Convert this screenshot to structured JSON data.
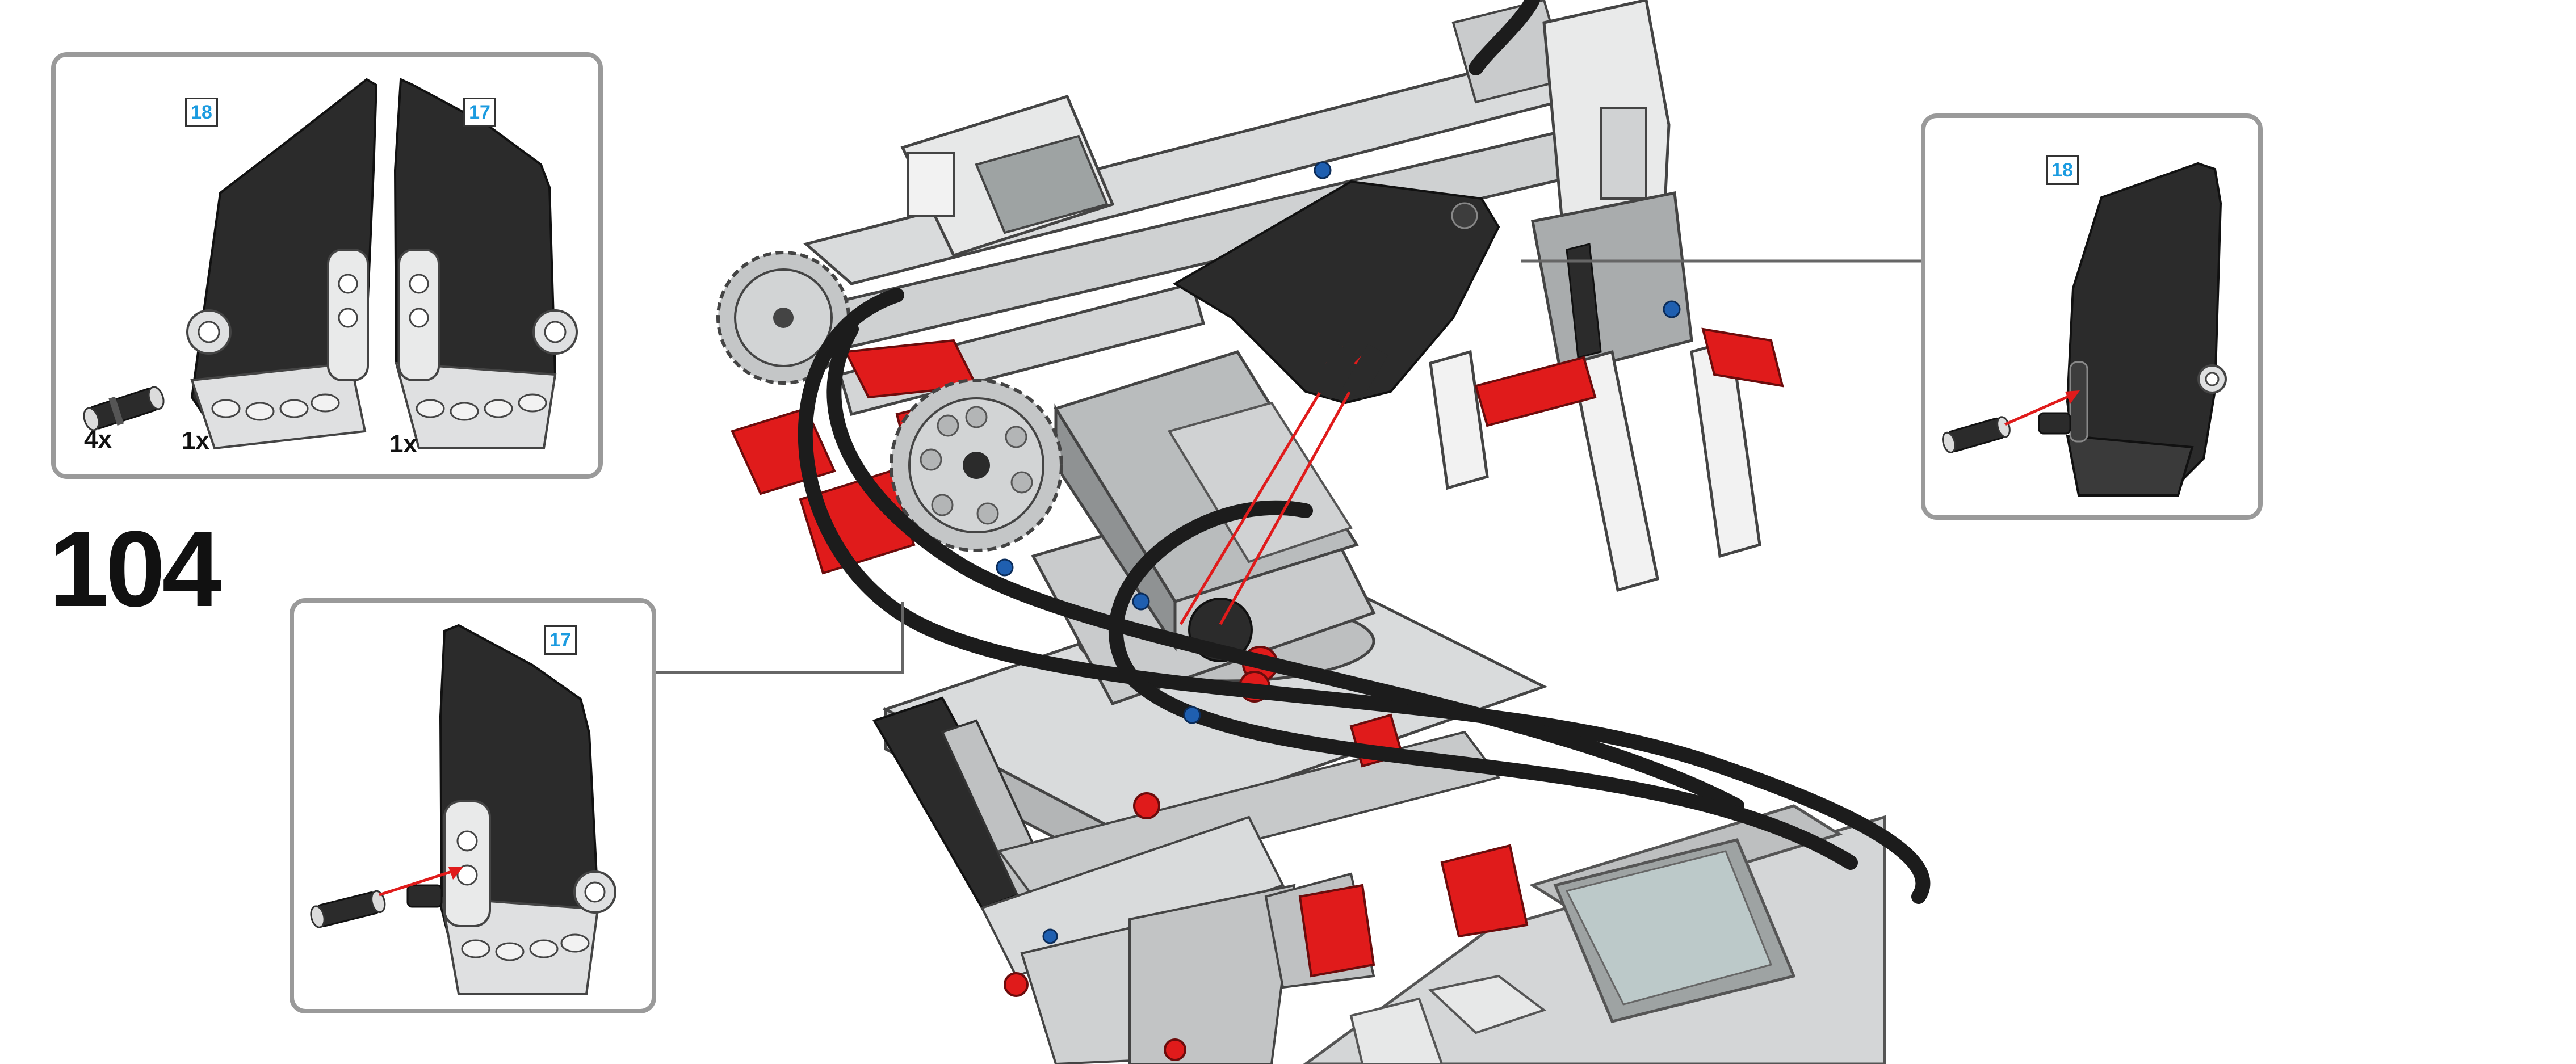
{
  "step": {
    "number": "104"
  },
  "parts_list": {
    "items": [
      {
        "qty": "4x",
        "icon": "axle-pin-icon"
      },
      {
        "qty": "1x",
        "icon": "panel-18-icon",
        "badge": "18"
      },
      {
        "qty": "1x",
        "icon": "panel-17-icon",
        "badge": "17"
      }
    ]
  },
  "callouts": {
    "right": {
      "badge": "18",
      "icon": "panel-18-attach-icon"
    },
    "left": {
      "badge": "17",
      "icon": "panel-17-attach-icon"
    }
  },
  "colors": {
    "frame": "#9a9a9a",
    "panel": "#2b2b2b",
    "red": "#e01b1b",
    "gray": "#b9bcbd",
    "light_gray": "#d9dbdc",
    "badge_text": "#1b9be0"
  }
}
